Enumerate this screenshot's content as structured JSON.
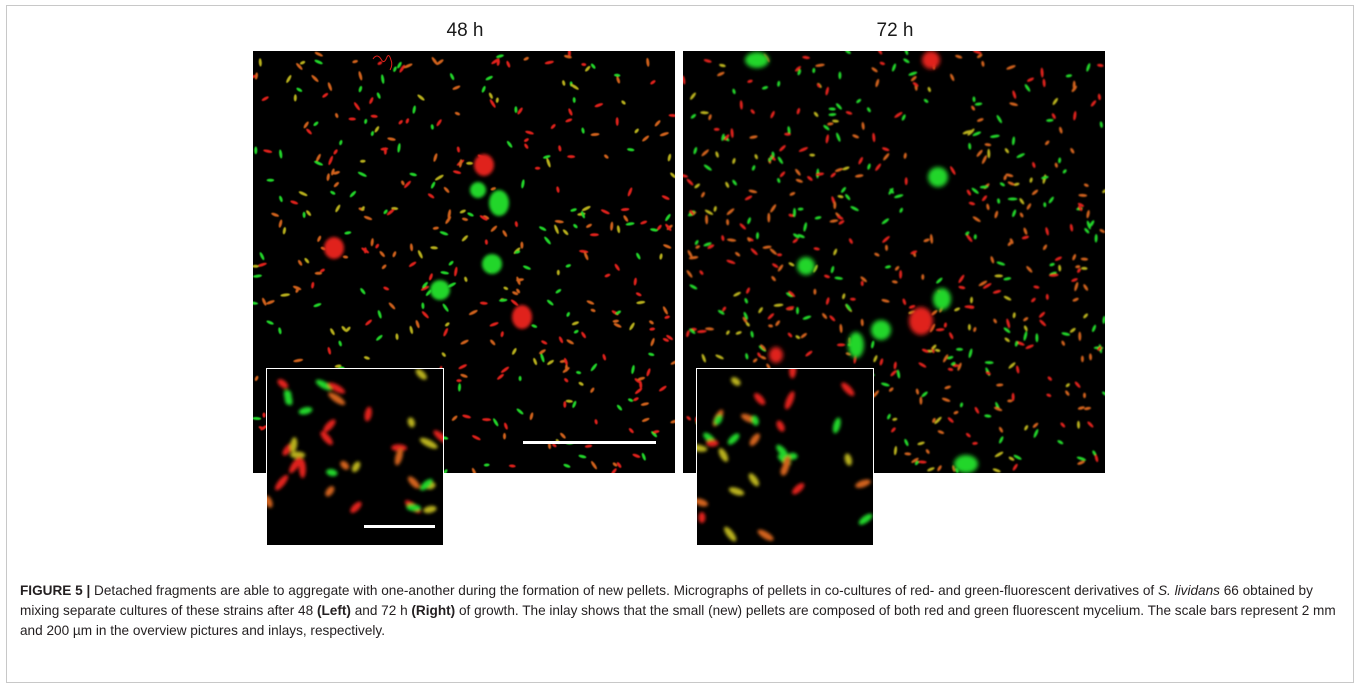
{
  "panels": {
    "left": {
      "label": "48 h"
    },
    "right": {
      "label": "72 h"
    }
  },
  "caption": {
    "figure_label": "FIGURE 5 |",
    "part1": " Detached fragments are able to aggregate with one-another during the formation of new pellets. Micrographs of pellets in co-cultures of red- and green-fluorescent derivatives of ",
    "species": "S. lividans",
    "part2": " 66 obtained by mixing separate cultures of these strains after 48 ",
    "left_word": "(Left)",
    "part3": " and 72 h ",
    "right_word": "(Right)",
    "part4": " of growth. The inlay shows that the small (new) pellets are composed of both red and green fluorescent mycelium. The scale bars represent 2 mm and 200 µm in the overview pictures and inlays, respectively."
  },
  "colors": {
    "red": "#e0201a",
    "green": "#23d62a",
    "orange": "#d0621c",
    "yellow": "#b8b01e",
    "background": "#000000",
    "scale_bar": "#ffffff"
  }
}
